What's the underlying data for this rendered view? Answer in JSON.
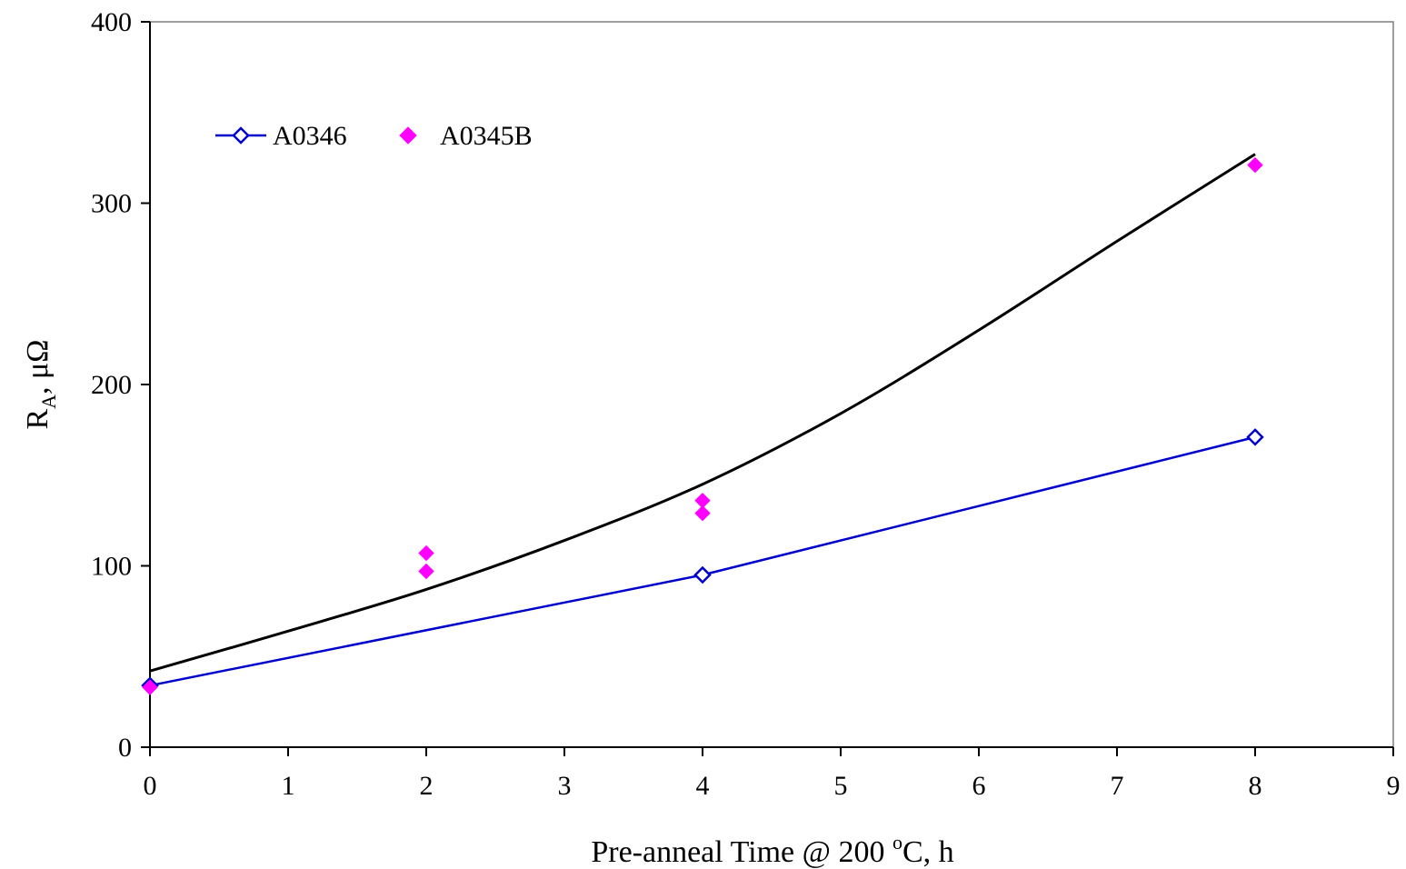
{
  "chart_data": {
    "type": "scatter",
    "title": "",
    "xlabel": {
      "prefix": "Pre-anneal Time @ 200 ",
      "superscript": "o",
      "suffix": "C, h"
    },
    "ylabel": {
      "base": "R",
      "subscript": "A",
      "suffix": ", μΩ"
    },
    "xlim": [
      0,
      9
    ],
    "ylim": [
      0,
      400
    ],
    "x_ticks": [
      "0",
      "1",
      "2",
      "3",
      "4",
      "5",
      "6",
      "7",
      "8",
      "9"
    ],
    "y_ticks": [
      "0",
      "100",
      "200",
      "300",
      "400"
    ],
    "grid": false,
    "legend_position": "top-left",
    "series": [
      {
        "name": "A0346",
        "color": "#0000cc",
        "marker": "open-diamond",
        "line": true,
        "points": [
          [
            0,
            34
          ],
          [
            4,
            95
          ],
          [
            8,
            171
          ]
        ]
      },
      {
        "name": "A0345B",
        "color": "#ff00ff",
        "marker": "filled-diamond",
        "line": false,
        "points": [
          [
            0,
            33
          ],
          [
            2,
            107
          ],
          [
            2,
            97
          ],
          [
            4,
            136
          ],
          [
            4,
            129
          ],
          [
            8,
            321
          ]
        ]
      }
    ],
    "trendline": {
      "color": "#000000",
      "points": [
        [
          0,
          42
        ],
        [
          1,
          64
        ],
        [
          2,
          87
        ],
        [
          3,
          114
        ],
        [
          4,
          145
        ],
        [
          5,
          184
        ],
        [
          6,
          230
        ],
        [
          7,
          279
        ],
        [
          8,
          327
        ]
      ]
    }
  }
}
